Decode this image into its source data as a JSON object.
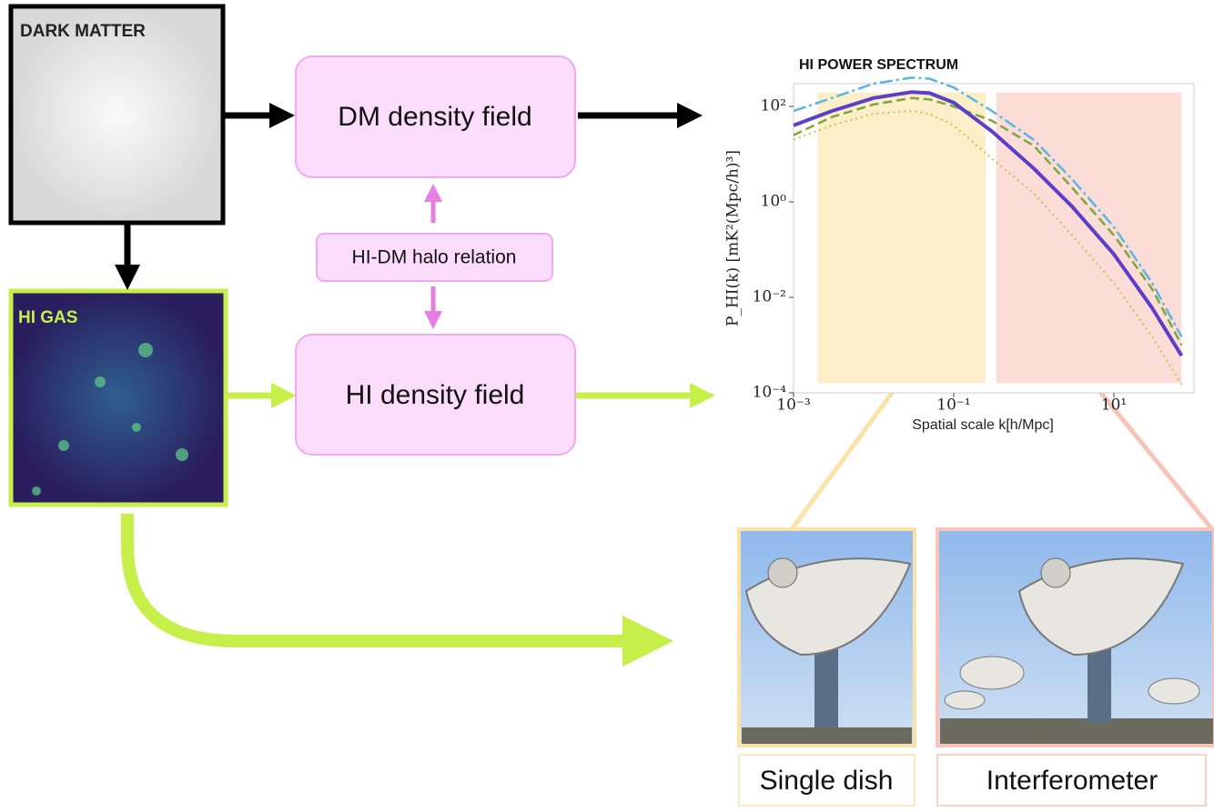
{
  "panels": {
    "dark_matter": "DARK MATTER",
    "hi_gas": "HI GAS"
  },
  "nodes": [
    {
      "label": "DM density field"
    },
    {
      "label": "HI-DM halo relation"
    },
    {
      "label": "HI density field"
    }
  ],
  "telescopes": [
    {
      "label": "Single dish"
    },
    {
      "label": "Interferometer"
    }
  ],
  "chart_data": {
    "type": "line",
    "title": "HI POWER SPECTRUM",
    "x_label": "Spatial scale k[h/Mpc]",
    "y_label": "P_HI(k) [mK²(Mpc/h)³]",
    "log_x": true,
    "log_y": true,
    "xlim": [
      0.001,
      100
    ],
    "ylim": [
      0.0001,
      300
    ],
    "xticks": [
      {
        "value": 0.001,
        "label": "10⁻³"
      },
      {
        "value": 0.1,
        "label": "10⁻¹"
      },
      {
        "value": 10,
        "label": "10¹"
      }
    ],
    "yticks": [
      {
        "value": 0.0001,
        "label": "10⁻⁴"
      },
      {
        "value": 0.01,
        "label": "10⁻²"
      },
      {
        "value": 1,
        "label": "10⁰"
      },
      {
        "value": 100,
        "label": "10²"
      }
    ],
    "bands": [
      {
        "x": [
          0.002,
          0.25
        ],
        "y": [
          0.00016,
          195
        ],
        "color": "#fbeec8"
      },
      {
        "x": [
          0.34,
          70
        ],
        "y": [
          0.00016,
          195
        ],
        "color": "#fbdcd6"
      }
    ],
    "x": [
      0.001,
      0.003,
      0.01,
      0.03,
      0.05,
      0.1,
      0.3,
      1,
      3,
      10,
      30,
      70
    ],
    "series": [
      {
        "color": "#5bb5e0",
        "dash": "14 4 3 4",
        "width": 2.5,
        "values": [
          80,
          150,
          300,
          400,
          380,
          250,
          80,
          20,
          3,
          0.3,
          0.02,
          0.0015
        ]
      },
      {
        "color": "#7aa83a",
        "dash": "10 5",
        "width": 2.5,
        "values": [
          25,
          60,
          110,
          150,
          140,
          100,
          50,
          15,
          2,
          0.2,
          0.015,
          0.001
        ]
      },
      {
        "color": "#b8cc44",
        "dash": "2 4",
        "width": 2,
        "values": [
          20,
          40,
          70,
          80,
          70,
          40,
          8,
          1.5,
          0.2,
          0.02,
          0.0015,
          0.00015
        ]
      },
      {
        "color": "#5b3fc8",
        "dash": "",
        "width": 4,
        "values": [
          40,
          80,
          150,
          200,
          190,
          120,
          30,
          5,
          0.8,
          0.08,
          0.006,
          0.0006
        ]
      }
    ]
  }
}
